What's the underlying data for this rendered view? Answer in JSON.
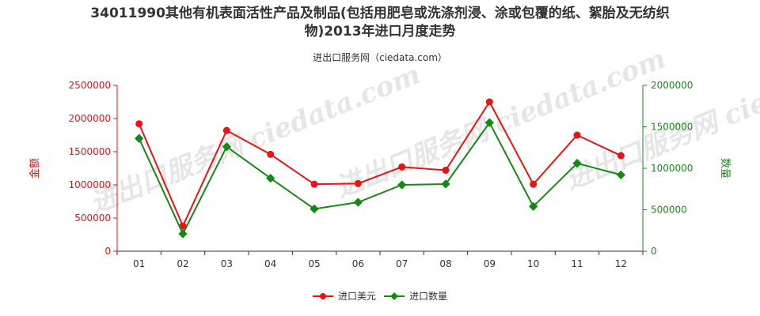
{
  "title_line1": "34011990其他有机表面活性产品及制品(包括用肥皂或洗涤剂浸、涂或包覆的纸、絮胎及无纺织",
  "title_line2": "物)2013年进口月度走势",
  "subtitle": "进出口服务网（ciedata.com）",
  "watermark": "进出口服务网 ciedata.com",
  "colors": {
    "left_axis": "#ee1111",
    "right_axis": "#1b8a1b",
    "series_value": "#ee1111",
    "series_qty": "#138a13"
  },
  "chart_data": {
    "type": "line",
    "categories": [
      "01",
      "02",
      "03",
      "04",
      "05",
      "06",
      "07",
      "08",
      "09",
      "10",
      "11",
      "12"
    ],
    "y_left": {
      "label": "金额",
      "range": [
        0,
        2500000
      ],
      "ticks": [
        0,
        500000,
        1000000,
        1500000,
        2000000,
        2500000
      ]
    },
    "y_right": {
      "label": "数量",
      "range": [
        0,
        2000000
      ],
      "ticks": [
        0,
        500000,
        1000000,
        1500000,
        2000000
      ]
    },
    "series": [
      {
        "name": "进口美元",
        "axis": "left",
        "color": "#ee1111",
        "values": [
          1920000,
          380000,
          1820000,
          1460000,
          1010000,
          1020000,
          1270000,
          1220000,
          2250000,
          1010000,
          1750000,
          1440000
        ]
      },
      {
        "name": "进口数量",
        "axis": "right",
        "color": "#138a13",
        "values": [
          1360000,
          210000,
          1260000,
          880000,
          510000,
          590000,
          800000,
          810000,
          1550000,
          540000,
          1060000,
          920000
        ]
      }
    ],
    "grid": false,
    "legend": "bottom-center"
  }
}
